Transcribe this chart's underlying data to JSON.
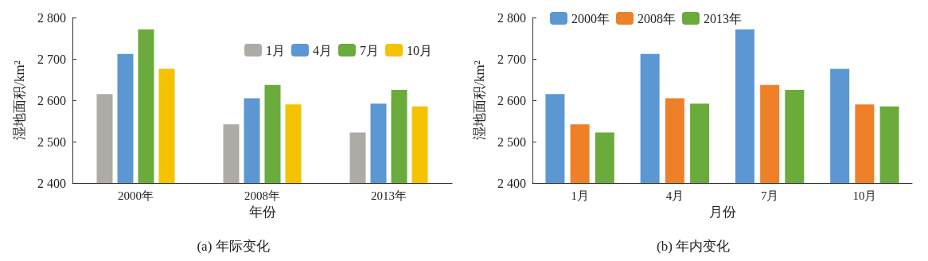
{
  "chart_data": [
    {
      "type": "bar",
      "categories": [
        "2000年",
        "2008年",
        "2013年"
      ],
      "xlabel": "年份",
      "ylabel": "湿地面积/km²",
      "ylim": [
        2400,
        2800
      ],
      "yticks": [
        {
          "value": 2400,
          "label": "2 400"
        },
        {
          "value": 2500,
          "label": "2 500"
        },
        {
          "value": 2600,
          "label": "2 600"
        },
        {
          "value": 2700,
          "label": "2 700"
        },
        {
          "value": 2800,
          "label": "2 800"
        }
      ],
      "grid": false,
      "legend": "top right",
      "annotations": [
        "(a) 年际变化"
      ],
      "series": [
        {
          "name": "1月",
          "color": "#aeaba6",
          "values": [
            2615,
            2542,
            2522
          ]
        },
        {
          "name": "4月",
          "color": "#5b97d3",
          "values": [
            2712,
            2605,
            2592
          ]
        },
        {
          "name": "7月",
          "color": "#6aab3c",
          "values": [
            2771,
            2637,
            2625
          ]
        },
        {
          "name": "10月",
          "color": "#f5c200",
          "values": [
            2676,
            2590,
            2585
          ]
        }
      ]
    },
    {
      "type": "bar",
      "categories": [
        "1月",
        "4月",
        "7月",
        "10月"
      ],
      "xlabel": "月份",
      "ylabel": "湿地面积/km²",
      "ylim": [
        2400,
        2800
      ],
      "yticks": [
        {
          "value": 2400,
          "label": "2 400"
        },
        {
          "value": 2500,
          "label": "2 500"
        },
        {
          "value": 2600,
          "label": "2 600"
        },
        {
          "value": 2700,
          "label": "2 700"
        },
        {
          "value": 2800,
          "label": "2 800"
        }
      ],
      "grid": false,
      "legend": "top",
      "annotations": [
        "(b) 年内变化"
      ],
      "series": [
        {
          "name": "2000年",
          "color": "#5b97d3",
          "values": [
            2615,
            2712,
            2771,
            2676
          ]
        },
        {
          "name": "2008年",
          "color": "#ee8127",
          "values": [
            2542,
            2605,
            2637,
            2590
          ]
        },
        {
          "name": "2013年",
          "color": "#6aab3c",
          "values": [
            2522,
            2592,
            2625,
            2585
          ]
        }
      ]
    }
  ]
}
